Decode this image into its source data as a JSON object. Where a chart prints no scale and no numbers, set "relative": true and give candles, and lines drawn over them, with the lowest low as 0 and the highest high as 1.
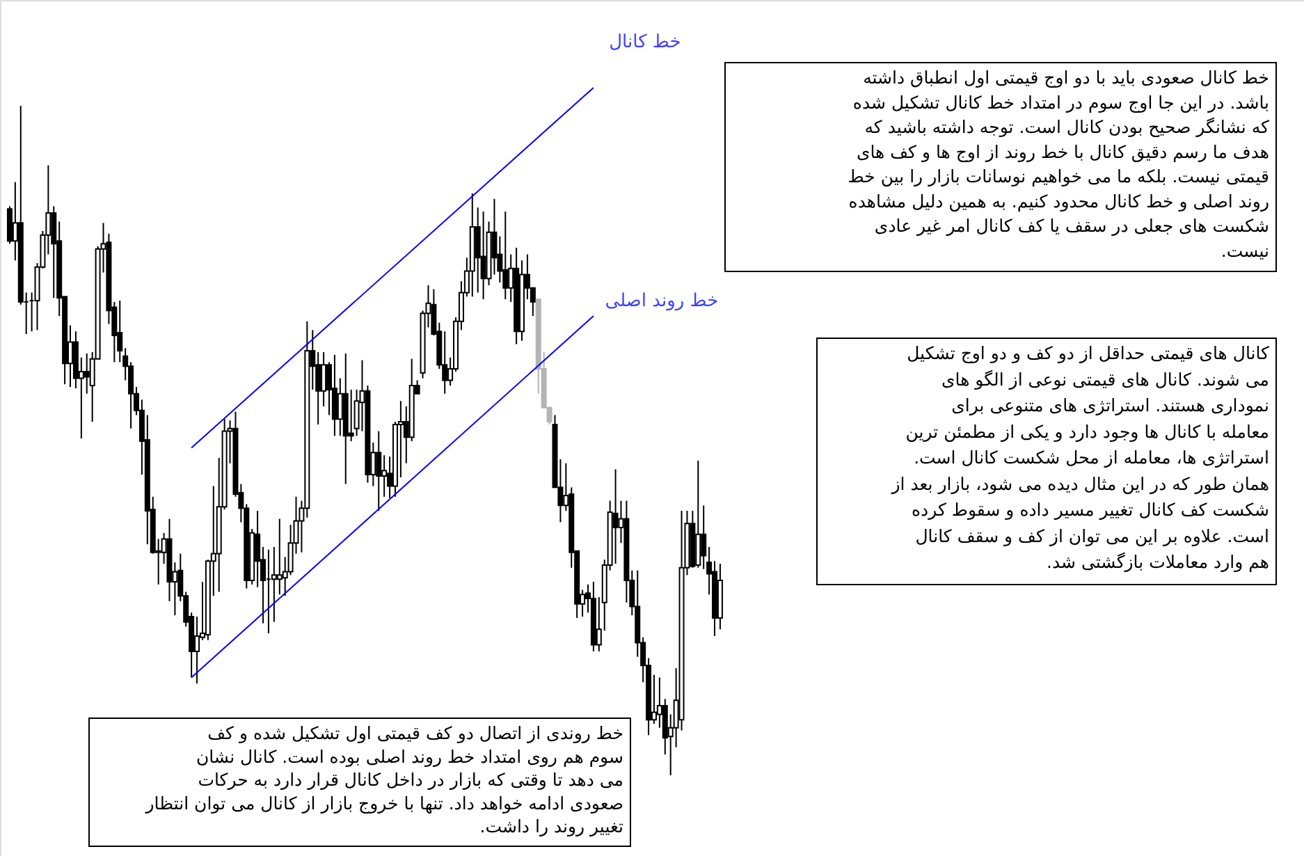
{
  "chart_data": {
    "type": "candlestick",
    "relative": true,
    "categories": [
      null,
      null,
      null,
      null,
      null,
      null,
      null,
      null,
      null,
      null,
      null,
      null,
      null,
      null,
      null,
      null,
      null,
      null,
      null,
      null,
      null,
      null,
      null,
      null,
      null,
      null,
      null,
      null,
      null,
      null,
      null,
      null,
      null,
      null,
      null,
      null,
      null,
      null,
      null,
      null,
      null,
      null,
      null,
      null,
      null,
      null,
      null,
      null,
      null,
      null,
      null,
      null,
      null,
      null,
      null,
      null,
      null,
      null,
      null,
      null,
      null,
      null,
      null,
      null,
      null,
      null,
      null,
      null,
      null,
      null,
      null,
      null,
      null,
      null,
      null,
      null,
      null,
      null,
      null,
      null,
      null,
      null,
      null,
      null,
      null,
      null,
      null,
      null,
      null,
      null,
      null,
      null,
      null,
      null,
      null,
      null,
      null,
      null,
      null,
      null,
      null,
      null,
      null,
      null,
      null,
      null,
      null,
      null,
      null,
      null,
      null,
      null,
      null,
      null,
      null,
      null,
      null,
      null,
      null,
      null,
      null,
      null,
      null,
      null,
      null,
      null,
      null,
      null,
      null,
      null
    ],
    "ohlc": [
      [
        0.846,
        0.85,
        0.794,
        0.798
      ],
      [
        0.798,
        0.886,
        0.769,
        0.825
      ],
      [
        0.825,
        1,
        0.703,
        0.707
      ],
      [
        0.707,
        0.721,
        0.659,
        0.707
      ],
      [
        0.709,
        0.721,
        0.663,
        0.709
      ],
      [
        0.709,
        0.765,
        0.665,
        0.759
      ],
      [
        0.759,
        0.813,
        0.757,
        0.807
      ],
      [
        0.807,
        0.911,
        0.778,
        0.84
      ],
      [
        0.84,
        0.85,
        0.713,
        0.794
      ],
      [
        0.798,
        0.827,
        0.686,
        0.713
      ],
      [
        0.715,
        0.715,
        0.584,
        0.615
      ],
      [
        0.615,
        0.672,
        0.58,
        0.647
      ],
      [
        0.647,
        0.663,
        0.578,
        0.593
      ],
      [
        0.593,
        0.624,
        0.503,
        0.603
      ],
      [
        0.603,
        0.63,
        0.57,
        0.595
      ],
      [
        0.582,
        0.632,
        0.528,
        0.622
      ],
      [
        0.622,
        0.79,
        0.622,
        0.786
      ],
      [
        0.786,
        0.825,
        0.751,
        0.794
      ],
      [
        0.796,
        0.809,
        0.674,
        0.694
      ],
      [
        0.699,
        0.707,
        0.617,
        0.657
      ],
      [
        0.661,
        0.709,
        0.617,
        0.634
      ],
      [
        0.626,
        0.638,
        0.59,
        0.611
      ],
      [
        0.611,
        0.617,
        0.518,
        0.57
      ],
      [
        0.57,
        0.58,
        0.538,
        0.545
      ],
      [
        0.545,
        0.561,
        0.449,
        0.499
      ],
      [
        0.501,
        0.538,
        0.345,
        0.395
      ],
      [
        0.397,
        0.416,
        0.331,
        0.333
      ],
      [
        0.335,
        0.353,
        0.285,
        0.333
      ],
      [
        0.333,
        0.362,
        0.316,
        0.353
      ],
      [
        0.353,
        0.383,
        0.26,
        0.289
      ],
      [
        0.289,
        0.318,
        0.239,
        0.304
      ],
      [
        0.306,
        0.331,
        0.26,
        0.268
      ],
      [
        0.268,
        0.274,
        0.222,
        0.229
      ],
      [
        0.237,
        0.243,
        0.146,
        0.185
      ],
      [
        0.185,
        0.237,
        0.137,
        0.208
      ],
      [
        0.206,
        0.289,
        0.202,
        0.212
      ],
      [
        0.21,
        0.322,
        0.202,
        0.32
      ],
      [
        0.32,
        0.432,
        0.268,
        0.331
      ],
      [
        0.331,
        0.474,
        0.274,
        0.401
      ],
      [
        0.401,
        0.532,
        0.397,
        0.514
      ],
      [
        0.514,
        0.53,
        0.466,
        0.518
      ],
      [
        0.518,
        0.543,
        0.416,
        0.42
      ],
      [
        0.422,
        0.435,
        0.378,
        0.399
      ],
      [
        0.399,
        0.405,
        0.279,
        0.291
      ],
      [
        0.291,
        0.368,
        0.285,
        0.362
      ],
      [
        0.36,
        0.395,
        0.281,
        0.32
      ],
      [
        0.322,
        0.341,
        0.227,
        0.291
      ],
      [
        0.293,
        0.337,
        0.212,
        0.293
      ],
      [
        0.293,
        0.341,
        0.229,
        0.299
      ],
      [
        0.293,
        0.383,
        0.27,
        0.299
      ],
      [
        0.295,
        0.326,
        0.268,
        0.304
      ],
      [
        0.304,
        0.374,
        0.299,
        0.347
      ],
      [
        0.347,
        0.416,
        0.331,
        0.38
      ],
      [
        0.38,
        0.41,
        0.333,
        0.399
      ],
      [
        0.399,
        0.678,
        0.385,
        0.634
      ],
      [
        0.634,
        0.665,
        0.576,
        0.611
      ],
      [
        0.613,
        0.632,
        0.524,
        0.574
      ],
      [
        0.574,
        0.632,
        0.551,
        0.613
      ],
      [
        0.613,
        0.617,
        0.538,
        0.576
      ],
      [
        0.578,
        0.628,
        0.507,
        0.532
      ],
      [
        0.532,
        0.593,
        0.507,
        0.57
      ],
      [
        0.57,
        0.63,
        0.435,
        0.507
      ],
      [
        0.511,
        0.576,
        0.499,
        0.507
      ],
      [
        0.518,
        0.576,
        0.507,
        0.559
      ],
      [
        0.557,
        0.62,
        0.514,
        0.574
      ],
      [
        0.574,
        0.582,
        0.437,
        0.449
      ],
      [
        0.449,
        0.497,
        0.432,
        0.482
      ],
      [
        0.482,
        0.514,
        0.395,
        0.447
      ],
      [
        0.447,
        0.478,
        0.416,
        0.455
      ],
      [
        0.451,
        0.476,
        0.414,
        0.432
      ],
      [
        0.432,
        0.528,
        0.416,
        0.524
      ],
      [
        0.524,
        0.559,
        0.445,
        0.528
      ],
      [
        0.528,
        0.551,
        0.466,
        0.505
      ],
      [
        0.505,
        0.622,
        0.499,
        0.582
      ],
      [
        0.582,
        0.59,
        0.57,
        0.57
      ],
      [
        0.601,
        0.694,
        0.593,
        0.69
      ],
      [
        0.69,
        0.732,
        0.669,
        0.705
      ],
      [
        0.703,
        0.726,
        0.657,
        0.659
      ],
      [
        0.663,
        0.676,
        0.607,
        0.613
      ],
      [
        0.613,
        0.663,
        0.57,
        0.59
      ],
      [
        0.59,
        0.624,
        0.582,
        0.607
      ],
      [
        0.607,
        0.684,
        0.603,
        0.678
      ],
      [
        0.678,
        0.738,
        0.665,
        0.721
      ],
      [
        0.721,
        0.773,
        0.715,
        0.753
      ],
      [
        0.753,
        0.869,
        0.715,
        0.819
      ],
      [
        0.819,
        0.848,
        0.721,
        0.773
      ],
      [
        0.775,
        0.842,
        0.711,
        0.742
      ],
      [
        0.742,
        0.827,
        0.732,
        0.811
      ],
      [
        0.811,
        0.861,
        0.748,
        0.773
      ],
      [
        0.778,
        0.805,
        0.736,
        0.753
      ],
      [
        0.755,
        0.842,
        0.711,
        0.728
      ],
      [
        0.728,
        0.778,
        0.707,
        0.757
      ],
      [
        0.757,
        0.788,
        0.644,
        0.663
      ],
      [
        0.663,
        0.769,
        0.649,
        0.748
      ],
      [
        0.748,
        0.778,
        0.711,
        0.728
      ],
      [
        0.728,
        0.728,
        0.686,
        0.707
      ],
      [
        0.711,
        0.711,
        0.57,
        0.607
      ],
      [
        0.607,
        0.632,
        0.549,
        0.549
      ],
      [
        0.549,
        0.551,
        0.524,
        0.528
      ],
      [
        0.524,
        0.538,
        0.43,
        0.43
      ],
      [
        0.43,
        0.472,
        0.378,
        0.403
      ],
      [
        0.403,
        0.466,
        0.395,
        0.418
      ],
      [
        0.42,
        0.43,
        0.31,
        0.333
      ],
      [
        0.335,
        0.335,
        0.235,
        0.256
      ],
      [
        0.256,
        0.277,
        0.237,
        0.27
      ],
      [
        0.272,
        0.285,
        0.243,
        0.264
      ],
      [
        0.264,
        0.289,
        0.185,
        0.195
      ],
      [
        0.195,
        0.266,
        0.185,
        0.218
      ],
      [
        0.258,
        0.322,
        0.216,
        0.314
      ],
      [
        0.314,
        0.41,
        0.306,
        0.393
      ],
      [
        0.391,
        0.457,
        0.316,
        0.37
      ],
      [
        0.37,
        0.41,
        0.347,
        0.383
      ],
      [
        0.383,
        0.41,
        0.258,
        0.291
      ],
      [
        0.291,
        0.306,
        0.239,
        0.252
      ],
      [
        0.252,
        0.306,
        0.177,
        0.198
      ],
      [
        0.198,
        0.206,
        0.139,
        0.164
      ],
      [
        0.164,
        0.175,
        0.06,
        0.083
      ],
      [
        0.083,
        0.15,
        0.077,
        0.094
      ],
      [
        0.091,
        0.146,
        0.071,
        0.104
      ],
      [
        0.104,
        0.114,
        0.031,
        0.056
      ],
      [
        0.058,
        0.091,
        0,
        0.071
      ],
      [
        0.071,
        0.16,
        0.042,
        0.112
      ],
      [
        0.083,
        0.395,
        0.067,
        0.31
      ],
      [
        0.31,
        0.395,
        0.299,
        0.376
      ],
      [
        0.376,
        0.395,
        0.31,
        0.312
      ],
      [
        0.314,
        0.47,
        0.31,
        0.36
      ],
      [
        0.36,
        0.403,
        0.308,
        0.328
      ],
      [
        0.318,
        0.341,
        0.27,
        0.301
      ],
      [
        0.304,
        0.32,
        0.208,
        0.235
      ],
      [
        0.235,
        0.316,
        0.218,
        0.291
      ]
    ],
    "colors": [
      "#000000",
      "#000000",
      "#000000",
      "#000000",
      "#000000",
      "#000000",
      "#000000",
      "#000000",
      "#000000",
      "#000000",
      "#000000",
      "#000000",
      "#000000",
      "#000000",
      "#000000",
      "#000000",
      "#000000",
      "#000000",
      "#000000",
      "#000000",
      "#000000",
      "#000000",
      "#000000",
      "#000000",
      "#000000",
      "#000000",
      "#000000",
      "#000000",
      "#000000",
      "#000000",
      "#000000",
      "#000000",
      "#000000",
      "#000000",
      "#000000",
      "#000000",
      "#000000",
      "#000000",
      "#000000",
      "#000000",
      "#000000",
      "#000000",
      "#000000",
      "#000000",
      "#000000",
      "#000000",
      "#000000",
      "#000000",
      "#000000",
      "#000000",
      "#000000",
      "#000000",
      "#000000",
      "#000000",
      "#000000",
      "#000000",
      "#000000",
      "#000000",
      "#000000",
      "#000000",
      "#000000",
      "#000000",
      "#000000",
      "#000000",
      "#000000",
      "#000000",
      "#000000",
      "#000000",
      "#000000",
      "#000000",
      "#000000",
      "#000000",
      "#000000",
      "#000000",
      "#000000",
      "#000000",
      "#000000",
      "#000000",
      "#000000",
      "#000000",
      "#000000",
      "#000000",
      "#000000",
      "#000000",
      "#000000",
      "#000000",
      "#000000",
      "#000000",
      "#000000",
      "#000000",
      "#000000",
      "#000000",
      "#000000",
      "#000000",
      "#000000",
      "#000000",
      "#b4b4b4",
      "#b4b4b4",
      "#b4b4b4",
      "#000000",
      "#000000",
      "#000000",
      "#000000",
      "#000000",
      "#000000",
      "#000000",
      "#000000",
      "#000000",
      "#000000",
      "#000000",
      "#000000",
      "#000000",
      "#000000",
      "#000000",
      "#000000",
      "#000000",
      "#000000",
      "#000000",
      "#000000",
      "#000000",
      "#000000",
      "#000000",
      "#000000",
      "#000000",
      "#000000",
      "#000000",
      "#000000",
      "#000000",
      "#000000",
      "#000000"
    ],
    "series": [
      {
        "name": "خط کانال",
        "type": "line",
        "color": "#0000ff",
        "values": [
          null,
          null,
          null,
          null,
          null,
          null,
          null,
          null,
          null,
          null,
          null,
          null,
          null,
          null,
          null,
          null,
          null,
          null,
          null,
          null,
          null,
          null,
          null,
          null,
          null,
          null,
          null,
          null,
          null,
          null,
          null,
          null,
          null,
          0.489,
          null,
          null,
          null,
          null,
          null,
          null,
          null,
          null,
          null,
          null,
          null,
          null,
          null,
          null,
          null,
          null,
          null,
          null,
          null,
          null,
          null,
          null,
          null,
          null,
          null,
          null,
          null,
          null,
          null,
          null,
          null,
          null,
          null,
          null,
          null,
          null,
          null,
          null,
          null,
          null,
          null,
          null,
          null,
          null,
          null,
          null,
          null,
          null,
          null,
          null,
          null,
          null,
          null,
          null,
          null,
          null,
          null,
          null,
          null,
          null,
          null,
          null,
          null,
          null,
          null,
          null,
          null,
          null,
          null,
          null,
          null,
          null,
          1.027,
          null,
          null,
          null,
          null,
          null,
          null,
          null,
          null,
          null,
          null,
          null,
          null,
          null,
          null,
          null,
          null,
          null,
          null,
          null,
          null,
          null,
          null,
          null
        ]
      },
      {
        "name": "خط روند اصلی",
        "type": "line",
        "color": "#0000ff",
        "values": [
          null,
          null,
          null,
          null,
          null,
          null,
          null,
          null,
          null,
          null,
          null,
          null,
          null,
          null,
          null,
          null,
          null,
          null,
          null,
          null,
          null,
          null,
          null,
          null,
          null,
          null,
          null,
          null,
          null,
          null,
          null,
          null,
          null,
          0.146,
          null,
          null,
          null,
          null,
          null,
          null,
          null,
          null,
          null,
          null,
          null,
          null,
          null,
          null,
          null,
          null,
          null,
          null,
          null,
          null,
          null,
          null,
          null,
          null,
          null,
          null,
          null,
          null,
          null,
          null,
          null,
          null,
          null,
          null,
          null,
          null,
          null,
          null,
          null,
          null,
          null,
          null,
          null,
          null,
          null,
          null,
          null,
          null,
          null,
          null,
          null,
          null,
          null,
          null,
          null,
          null,
          null,
          null,
          null,
          null,
          null,
          null,
          null,
          null,
          null,
          null,
          null,
          null,
          null,
          null,
          null,
          null,
          0.686,
          null,
          null,
          null,
          null,
          null,
          null,
          null,
          null,
          null,
          null,
          null,
          null,
          null,
          null,
          null,
          null,
          null,
          null,
          null,
          null,
          null,
          null,
          null
        ]
      }
    ],
    "annotations": [
      "خط کانال صعودی باید با دو اوج قیمتی اول انطباق داشته\nباشد. در این جا اوج سوم در امتداد خط کانال تشکیل شده\nکه نشانگر صحیح بودن کانال است. توجه داشته باشید که\nهدف ما رسم دقیق کانال با خط روند از اوج ها و کف های\nقیمتی نیست. بلکه ما می خواهیم نوسانات بازار را بین خط\nروند اصلی و خط کانال محدود کنیم. به همین دلیل مشاهده\nشکست های جعلی در سقف یا کف کانال امر غیر عادی\nنیست.",
      "کانال های قیمتی حداقل از دو کف و دو اوج تشکیل\nمی شوند. کانال های قیمتی نوعی از الگو های\nنموداری هستند. استراتژی های متنوعی برای\nمعامله با کانال ها وجود دارد و یکی از مطمئن ترین\nاستراتژی ها، معامله از محل شکست کانال است.\nهمان طور که در این مثال دیده می شود، بازار بعد از\nشکست کف کانال تغییر مسیر داده و سقوط کرده\nاست. علاوه بر این می توان از کف و سقف کانال\nهم وارد معاملات بازگشتی شد.",
      "خط روندی از اتصال دو کف قیمتی اول تشکیل شده و کف\nسوم هم روی امتداد خط روند اصلی بوده است. کانال نشان\nمی دهد تا وقتی که بازار در داخل کانال قرار دارد به حرکات\nصعودی ادامه خواهد داد. تنها با خروج بازار از کانال می توان انتظار\nتغییر روند را داشت."
    ]
  }
}
